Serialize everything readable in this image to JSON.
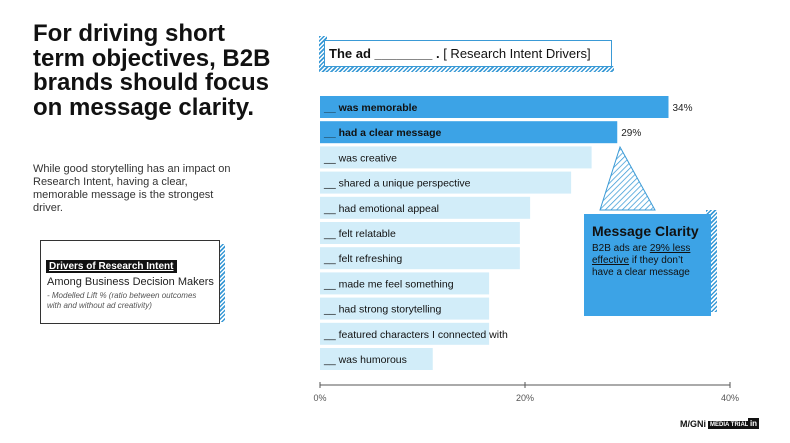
{
  "headline": "For driving short term objectives, B2B brands should focus on message clarity.",
  "subtext": "While good storytelling has an impact on Research Intent, having a clear, memorable message is the strongest driver.",
  "drivers": {
    "tag": "Drivers of Research Intent",
    "line1": "Among Business Decision Makers",
    "line2": "- Modelled Lift % (ratio between outcomes with and without ad creativity)"
  },
  "callout": {
    "bold": "The ad ________ .",
    "rest": "[ Research Intent Drivers]"
  },
  "message_clarity": {
    "title": "Message Clarity",
    "body_before": "B2B ads are ",
    "body_link": "29% less effective",
    "body_after": " if they don’t have a clear message"
  },
  "logo": {
    "brand": "M/GNi",
    "badge": "MEDIA TRIALS",
    "linkedin": "in"
  },
  "colors": {
    "highlight": "#3ca3e6",
    "bar": "#d2edf9",
    "accent": "#3a9ad6"
  },
  "chart_data": {
    "type": "bar",
    "orientation": "horizontal",
    "categories": [
      "__ was memorable",
      "__ had a clear message",
      "__ was creative",
      "__ shared a unique perspective",
      "__ had emotional appeal",
      "__ felt relatable",
      "__ felt refreshing",
      "__ made me feel something",
      "__ had strong storytelling",
      "__ featured characters I connected with",
      "__ was humorous"
    ],
    "values": [
      34,
      29,
      26.5,
      24.5,
      20.5,
      19.5,
      19.5,
      16.5,
      16.5,
      16.5,
      11
    ],
    "highlighted": [
      true,
      true,
      false,
      false,
      false,
      false,
      false,
      false,
      false,
      false,
      false
    ],
    "value_labels": [
      "34%",
      "29%",
      "",
      "",
      "",
      "",
      "",
      "",
      "",
      "",
      ""
    ],
    "xlim": [
      0,
      40
    ],
    "xticks": [
      "0%",
      "20%",
      "40%"
    ],
    "xtick_values": [
      0,
      20,
      40
    ],
    "title": "",
    "xlabel": "",
    "ylabel": ""
  }
}
